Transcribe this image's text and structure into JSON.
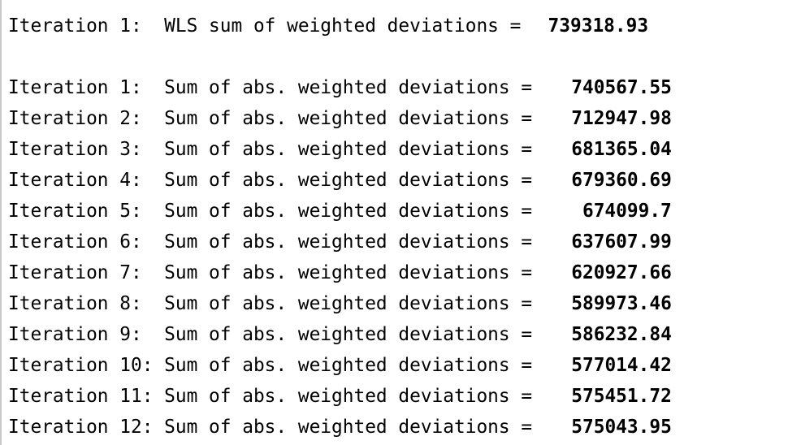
{
  "wls": {
    "label": "Iteration 1:  WLS sum of weighted deviations = ",
    "value": "739318.93"
  },
  "iterations": [
    {
      "label": "Iteration 1:  Sum of abs. weighted deviations = ",
      "value": "740567.55"
    },
    {
      "label": "Iteration 2:  Sum of abs. weighted deviations = ",
      "value": "712947.98"
    },
    {
      "label": "Iteration 3:  Sum of abs. weighted deviations = ",
      "value": "681365.04"
    },
    {
      "label": "Iteration 4:  Sum of abs. weighted deviations = ",
      "value": "679360.69"
    },
    {
      "label": "Iteration 5:  Sum of abs. weighted deviations = ",
      "value": "674099.7"
    },
    {
      "label": "Iteration 6:  Sum of abs. weighted deviations = ",
      "value": "637607.99"
    },
    {
      "label": "Iteration 7:  Sum of abs. weighted deviations = ",
      "value": "620927.66"
    },
    {
      "label": "Iteration 8:  Sum of abs. weighted deviations = ",
      "value": "589973.46"
    },
    {
      "label": "Iteration 9:  Sum of abs. weighted deviations = ",
      "value": "586232.84"
    },
    {
      "label": "Iteration 10: Sum of abs. weighted deviations = ",
      "value": "577014.42"
    },
    {
      "label": "Iteration 11: Sum of abs. weighted deviations = ",
      "value": "575451.72"
    },
    {
      "label": "Iteration 12: Sum of abs. weighted deviations = ",
      "value": "575043.95"
    }
  ]
}
